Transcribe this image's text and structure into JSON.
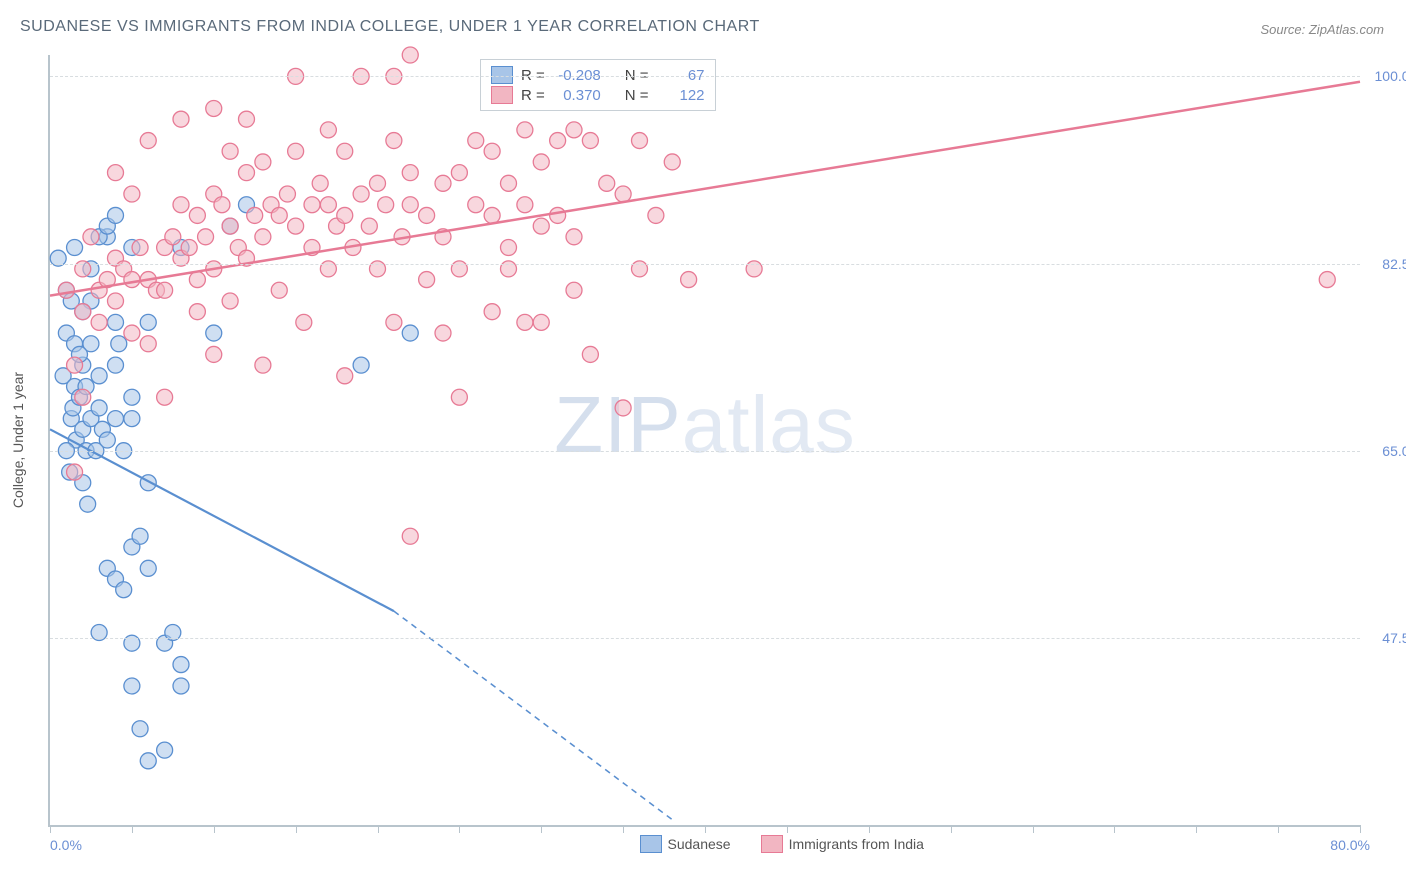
{
  "title": "SUDANESE VS IMMIGRANTS FROM INDIA COLLEGE, UNDER 1 YEAR CORRELATION CHART",
  "source": "Source: ZipAtlas.com",
  "y_axis_title": "College, Under 1 year",
  "watermark_bold": "ZIP",
  "watermark_light": "atlas",
  "chart": {
    "type": "scatter",
    "background_color": "#ffffff",
    "axis_color": "#b8c4cc",
    "grid_color": "#d8dde0",
    "xlim": [
      0,
      80
    ],
    "ylim": [
      30,
      102
    ],
    "x_left_label": "0.0%",
    "x_right_label": "80.0%",
    "x_ticks": [
      0,
      5,
      10,
      15,
      20,
      25,
      30,
      35,
      40,
      45,
      50,
      55,
      60,
      65,
      70,
      75,
      80
    ],
    "y_gridlines": [
      47.5,
      65.0,
      82.5,
      100.0
    ],
    "y_labels": [
      "100.0%",
      "82.5%",
      "65.0%",
      "47.5%"
    ],
    "marker_radius": 8,
    "marker_opacity": 0.55,
    "series": [
      {
        "name": "Sudanese",
        "fill": "#a8c5e8",
        "stroke": "#5a8fd0",
        "R": "-0.208",
        "N": "67",
        "trend": {
          "x1": 0,
          "y1": 67,
          "x2_solid": 21,
          "y2_solid": 50,
          "x2_dash": 38,
          "y2_dash": 30.5,
          "width": 2.2
        },
        "points": [
          [
            0.5,
            83
          ],
          [
            0.8,
            72
          ],
          [
            1,
            80
          ],
          [
            1,
            76
          ],
          [
            1.2,
            63
          ],
          [
            1.3,
            68
          ],
          [
            1.4,
            69
          ],
          [
            1.5,
            84
          ],
          [
            1.5,
            71
          ],
          [
            1.6,
            66
          ],
          [
            1.8,
            70
          ],
          [
            2,
            62
          ],
          [
            2,
            67
          ],
          [
            2,
            73
          ],
          [
            2.2,
            65
          ],
          [
            2.3,
            60
          ],
          [
            2.5,
            68
          ],
          [
            2.5,
            75
          ],
          [
            2.8,
            65
          ],
          [
            3,
            69
          ],
          [
            3,
            72
          ],
          [
            3.2,
            67
          ],
          [
            3.5,
            85
          ],
          [
            3.5,
            66
          ],
          [
            4,
            73
          ],
          [
            4,
            68
          ],
          [
            4,
            77
          ],
          [
            4.2,
            75
          ],
          [
            4.5,
            65
          ],
          [
            5,
            84
          ],
          [
            5,
            70
          ],
          [
            5,
            68
          ],
          [
            6,
            77
          ],
          [
            3,
            48
          ],
          [
            3.5,
            54
          ],
          [
            4,
            53
          ],
          [
            4.5,
            52
          ],
          [
            5,
            56
          ],
          [
            5,
            47
          ],
          [
            5.5,
            57
          ],
          [
            6,
            54
          ],
          [
            6,
            62
          ],
          [
            7,
            47
          ],
          [
            7.5,
            48
          ],
          [
            8,
            43
          ],
          [
            8,
            45
          ],
          [
            2.5,
            79
          ],
          [
            3,
            85
          ],
          [
            3.5,
            86
          ],
          [
            4,
            87
          ],
          [
            5,
            43
          ],
          [
            5.5,
            39
          ],
          [
            6,
            36
          ],
          [
            7,
            37
          ],
          [
            8,
            84
          ],
          [
            10,
            76
          ],
          [
            11,
            86
          ],
          [
            12,
            88
          ],
          [
            19,
            73
          ],
          [
            22,
            76
          ],
          [
            2,
            78
          ],
          [
            2.5,
            82
          ],
          [
            1.5,
            75
          ],
          [
            1.8,
            74
          ],
          [
            2.2,
            71
          ],
          [
            1,
            65
          ],
          [
            1.3,
            79
          ]
        ]
      },
      {
        "name": "Immigrants from India",
        "fill": "#f2b6c2",
        "stroke": "#e77a95",
        "R": "0.370",
        "N": "122",
        "trend": {
          "x1": 0,
          "y1": 79.5,
          "x2_solid": 80,
          "y2_solid": 99.5,
          "width": 2.5
        },
        "points": [
          [
            1,
            80
          ],
          [
            1.5,
            63
          ],
          [
            2,
            82
          ],
          [
            2,
            78
          ],
          [
            2.5,
            85
          ],
          [
            3,
            80
          ],
          [
            3,
            77
          ],
          [
            3.5,
            81
          ],
          [
            4,
            83
          ],
          [
            4,
            79
          ],
          [
            4.5,
            82
          ],
          [
            5,
            81
          ],
          [
            5,
            89
          ],
          [
            5.5,
            84
          ],
          [
            6,
            81
          ],
          [
            6,
            75
          ],
          [
            6.5,
            80
          ],
          [
            7,
            84
          ],
          [
            7,
            80
          ],
          [
            7.5,
            85
          ],
          [
            8,
            83
          ],
          [
            8,
            88
          ],
          [
            8.5,
            84
          ],
          [
            9,
            87
          ],
          [
            9,
            81
          ],
          [
            9.5,
            85
          ],
          [
            10,
            89
          ],
          [
            10,
            82
          ],
          [
            10.5,
            88
          ],
          [
            11,
            86
          ],
          [
            11,
            79
          ],
          [
            11.5,
            84
          ],
          [
            12,
            91
          ],
          [
            12,
            83
          ],
          [
            12.5,
            87
          ],
          [
            13,
            92
          ],
          [
            13,
            85
          ],
          [
            13.5,
            88
          ],
          [
            14,
            87
          ],
          [
            14,
            80
          ],
          [
            14.5,
            89
          ],
          [
            15,
            86
          ],
          [
            15,
            93
          ],
          [
            15.5,
            77
          ],
          [
            16,
            88
          ],
          [
            16,
            84
          ],
          [
            16.5,
            90
          ],
          [
            17,
            88
          ],
          [
            17,
            82
          ],
          [
            17.5,
            86
          ],
          [
            18,
            93
          ],
          [
            18,
            87
          ],
          [
            18.5,
            84
          ],
          [
            19,
            100
          ],
          [
            19,
            89
          ],
          [
            19.5,
            86
          ],
          [
            20,
            82
          ],
          [
            20,
            90
          ],
          [
            20.5,
            88
          ],
          [
            21,
            77
          ],
          [
            21,
            94
          ],
          [
            21.5,
            85
          ],
          [
            22,
            88
          ],
          [
            22,
            91
          ],
          [
            23,
            87
          ],
          [
            23,
            81
          ],
          [
            24,
            85
          ],
          [
            24,
            90
          ],
          [
            25,
            91
          ],
          [
            25,
            82
          ],
          [
            26,
            88
          ],
          [
            26,
            94
          ],
          [
            27,
            87
          ],
          [
            27,
            93
          ],
          [
            28,
            84
          ],
          [
            28,
            90
          ],
          [
            29,
            88
          ],
          [
            29,
            95
          ],
          [
            30,
            92
          ],
          [
            30,
            86
          ],
          [
            31,
            94
          ],
          [
            31,
            87
          ],
          [
            32,
            95
          ],
          [
            32,
            85
          ],
          [
            33,
            94
          ],
          [
            34,
            90
          ],
          [
            35,
            89
          ],
          [
            36,
            94
          ],
          [
            37,
            87
          ],
          [
            38,
            92
          ],
          [
            22,
            57
          ],
          [
            25,
            70
          ],
          [
            27,
            78
          ],
          [
            33,
            74
          ],
          [
            35,
            69
          ],
          [
            39,
            81
          ],
          [
            29,
            77
          ],
          [
            18,
            72
          ],
          [
            7,
            70
          ],
          [
            13,
            73
          ],
          [
            12,
            96
          ],
          [
            22,
            102
          ],
          [
            24,
            76
          ],
          [
            11,
            93
          ],
          [
            10,
            97
          ],
          [
            32,
            80
          ],
          [
            43,
            82
          ],
          [
            6,
            94
          ],
          [
            4,
            91
          ],
          [
            9,
            78
          ],
          [
            15,
            100
          ],
          [
            8,
            96
          ],
          [
            17,
            95
          ],
          [
            21,
            100
          ],
          [
            30,
            77
          ],
          [
            36,
            82
          ],
          [
            78,
            81
          ],
          [
            28,
            82
          ],
          [
            5,
            76
          ],
          [
            10,
            74
          ],
          [
            1.5,
            73
          ],
          [
            2,
            70
          ]
        ]
      }
    ],
    "stats_box": {
      "label_R": "R =",
      "label_N": "N ="
    },
    "bottom_legend": [
      {
        "swatch_fill": "#a8c5e8",
        "swatch_stroke": "#5a8fd0",
        "label": "Sudanese"
      },
      {
        "swatch_fill": "#f2b6c2",
        "swatch_stroke": "#e77a95",
        "label": "Immigrants from India"
      }
    ]
  }
}
